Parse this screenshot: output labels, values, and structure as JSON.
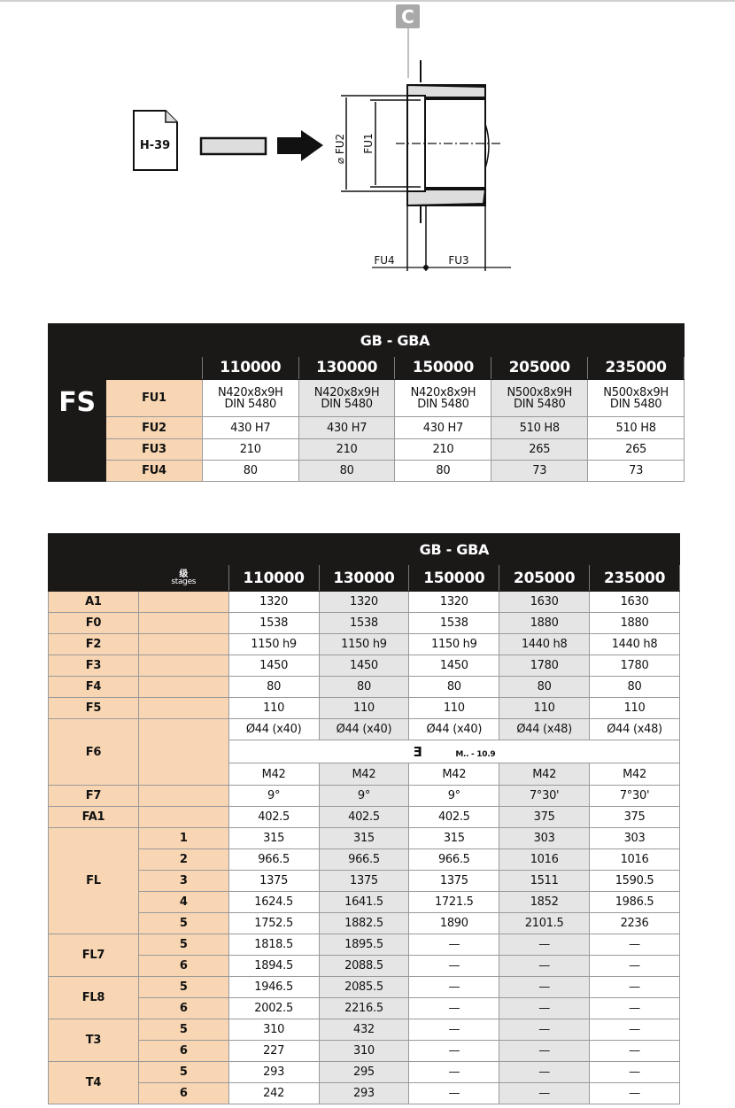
{
  "diagram": {
    "doc_label": "H-39",
    "callout": "C",
    "dims": {
      "fu1": "FU1",
      "fu2": "⌀ FU2",
      "fu3": "FU3",
      "fu4": "FU4"
    },
    "icons": [
      "document-icon",
      "shaft-icon",
      "arrow-right-icon",
      "hollow-shaft-drawing"
    ]
  },
  "colors": {
    "header": "#1b1818",
    "label_bg": "#f8d6b3",
    "shade": "#e5e5e5"
  },
  "table1": {
    "side_label": "FS",
    "title": "GB - GBA",
    "columns": [
      "110000",
      "130000",
      "150000",
      "205000",
      "235000"
    ],
    "rows": [
      {
        "label": "FU1",
        "values": [
          "N420x8x9H\nDIN 5480",
          "N420x8x9H\nDIN 5480",
          "N420x8x9H\nDIN 5480",
          "N500x8x9H\nDIN 5480",
          "N500x8x9H\nDIN 5480"
        ]
      },
      {
        "label": "FU2",
        "values": [
          "430 H7",
          "430 H7",
          "430 H7",
          "510 H8",
          "510 H8"
        ]
      },
      {
        "label": "FU3",
        "values": [
          "210",
          "210",
          "210",
          "265",
          "265"
        ]
      },
      {
        "label": "FU4",
        "values": [
          "80",
          "80",
          "80",
          "73",
          "73"
        ]
      }
    ]
  },
  "table2": {
    "title": "GB - GBA",
    "stages_label_cn": "级",
    "stages_label": "stages",
    "columns": [
      "110000",
      "130000",
      "150000",
      "205000",
      "235000"
    ],
    "rows": [
      {
        "label": "A1",
        "stages": [
          ""
        ],
        "values": [
          [
            "1320",
            "1320",
            "1320",
            "1630",
            "1630"
          ]
        ]
      },
      {
        "label": "F0",
        "stages": [
          ""
        ],
        "values": [
          [
            "1538",
            "1538",
            "1538",
            "1880",
            "1880"
          ]
        ]
      },
      {
        "label": "F2",
        "stages": [
          ""
        ],
        "values": [
          [
            "1150 h9",
            "1150 h9",
            "1150 h9",
            "1440 h8",
            "1440 h8"
          ]
        ]
      },
      {
        "label": "F3",
        "stages": [
          ""
        ],
        "values": [
          [
            "1450",
            "1450",
            "1450",
            "1780",
            "1780"
          ]
        ]
      },
      {
        "label": "F4",
        "stages": [
          ""
        ],
        "values": [
          [
            "80",
            "80",
            "80",
            "80",
            "80"
          ]
        ]
      },
      {
        "label": "F5",
        "stages": [
          ""
        ],
        "values": [
          [
            "110",
            "110",
            "110",
            "110",
            "110"
          ]
        ]
      },
      {
        "label": "F6",
        "stages": [
          ""
        ],
        "values": [
          [
            "Ø44 (x40)",
            "Ø44 (x40)",
            "Ø44 (x40)",
            "Ø44 (x48)",
            "Ø44 (x48)"
          ]
        ],
        "note": {
          "icon": "bolt-icon",
          "text": "M.. - 10.9"
        },
        "after_note": [
          "M42",
          "M42",
          "M42",
          "M42",
          "M42"
        ]
      },
      {
        "label": "F7",
        "stages": [
          ""
        ],
        "values": [
          [
            "9°",
            "9°",
            "9°",
            "7°30'",
            "7°30'"
          ]
        ]
      },
      {
        "label": "FA1",
        "stages": [
          ""
        ],
        "values": [
          [
            "402.5",
            "402.5",
            "402.5",
            "375",
            "375"
          ]
        ]
      },
      {
        "label": "FL",
        "stages": [
          "1",
          "2",
          "3",
          "4",
          "5"
        ],
        "values": [
          [
            "315",
            "315",
            "315",
            "303",
            "303"
          ],
          [
            "966.5",
            "966.5",
            "966.5",
            "1016",
            "1016"
          ],
          [
            "1375",
            "1375",
            "1375",
            "1511",
            "1590.5"
          ],
          [
            "1624.5",
            "1641.5",
            "1721.5",
            "1852",
            "1986.5"
          ],
          [
            "1752.5",
            "1882.5",
            "1890",
            "2101.5",
            "2236"
          ]
        ]
      },
      {
        "label": "FL7",
        "stages": [
          "5",
          "6"
        ],
        "values": [
          [
            "1818.5",
            "1895.5",
            "—",
            "—",
            "—"
          ],
          [
            "1894.5",
            "2088.5",
            "—",
            "—",
            "—"
          ]
        ]
      },
      {
        "label": "FL8",
        "stages": [
          "5",
          "6"
        ],
        "values": [
          [
            "1946.5",
            "2085.5",
            "—",
            "—",
            "—"
          ],
          [
            "2002.5",
            "2216.5",
            "—",
            "—",
            "—"
          ]
        ]
      },
      {
        "label": "T3",
        "stages": [
          "5",
          "6"
        ],
        "values": [
          [
            "310",
            "432",
            "—",
            "—",
            "—"
          ],
          [
            "227",
            "310",
            "—",
            "—",
            "—"
          ]
        ]
      },
      {
        "label": "T4",
        "stages": [
          "5",
          "6"
        ],
        "values": [
          [
            "293",
            "295",
            "—",
            "—",
            "—"
          ],
          [
            "242",
            "293",
            "—",
            "—",
            "—"
          ]
        ]
      }
    ]
  }
}
